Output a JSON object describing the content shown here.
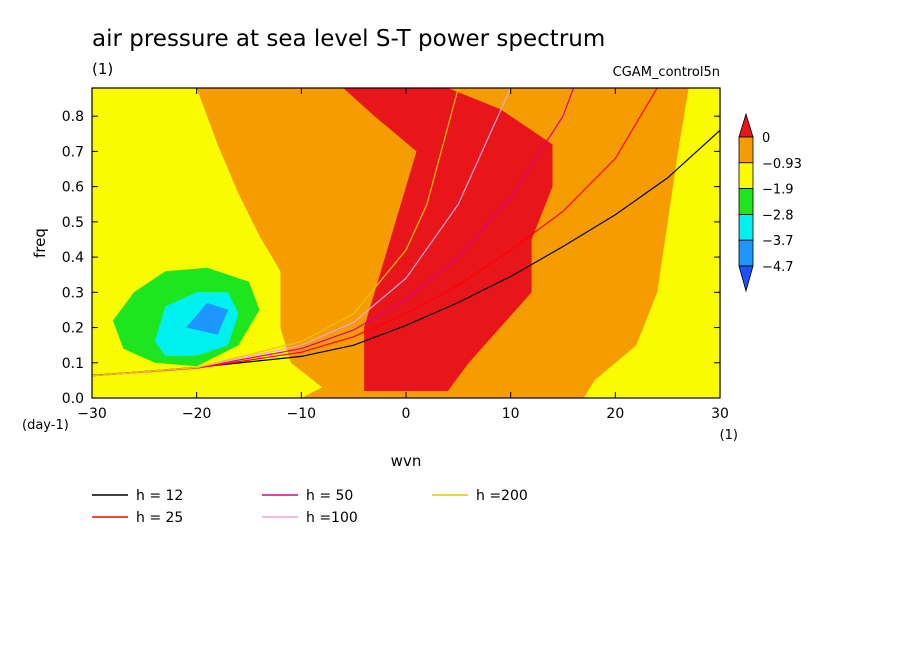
{
  "title": "air pressure at sea level S-T power spectrum",
  "units_label": "(1)",
  "run_label": "CGAM_control5n",
  "chart_data": {
    "type": "heatmap",
    "xlabel": "wvn",
    "ylabel": "freq",
    "x_units": "(1)",
    "y_units": "(day-1)",
    "xlim": [
      -30,
      30
    ],
    "ylim": [
      0,
      0.88
    ],
    "xticks": [
      -30,
      -20,
      -10,
      0,
      10,
      20,
      30
    ],
    "xtick_labels": [
      "−30",
      "−20",
      "−10",
      "0",
      "10",
      "20",
      "30"
    ],
    "yticks": [
      0.0,
      0.1,
      0.2,
      0.3,
      0.4,
      0.5,
      0.6,
      0.7,
      0.8
    ],
    "ytick_labels": [
      "0.0",
      "0.1",
      "0.2",
      "0.3",
      "0.4",
      "0.5",
      "0.6",
      "0.7",
      "0.8"
    ],
    "colorbar": {
      "labels": [
        "0",
        "−0.93",
        "−1.9",
        "−2.8",
        "−3.7",
        "−4.7"
      ],
      "colors": [
        "#e8161a",
        "#f59c00",
        "#fafa00",
        "#1ee61e",
        "#00f0f0",
        "#1e96ff",
        "#1e50ff"
      ]
    },
    "regions": [
      {
        "level": "yellow",
        "color": "#fafa00",
        "polygon": [
          [
            -30,
            0
          ],
          [
            -30,
            0.88
          ],
          [
            -20,
            0.88
          ],
          [
            -18,
            0.72
          ],
          [
            -16,
            0.58
          ],
          [
            -14,
            0.46
          ],
          [
            -12,
            0.36
          ],
          [
            -12,
            0.2
          ],
          [
            -11,
            0.1
          ],
          [
            -8,
            0.03
          ],
          [
            -10,
            0
          ]
        ]
      },
      {
        "level": "green",
        "color": "#1ee61e",
        "polygon": [
          [
            -28,
            0.22
          ],
          [
            -26,
            0.3
          ],
          [
            -23,
            0.36
          ],
          [
            -19,
            0.37
          ],
          [
            -15,
            0.33
          ],
          [
            -14,
            0.25
          ],
          [
            -16,
            0.15
          ],
          [
            -20,
            0.09
          ],
          [
            -24,
            0.1
          ],
          [
            -27,
            0.14
          ]
        ]
      },
      {
        "level": "cyan",
        "color": "#00f0f0",
        "polygon": [
          [
            -24,
            0.16
          ],
          [
            -23,
            0.26
          ],
          [
            -20,
            0.3
          ],
          [
            -17,
            0.3
          ],
          [
            -16,
            0.24
          ],
          [
            -17,
            0.15
          ],
          [
            -20,
            0.12
          ],
          [
            -23,
            0.12
          ]
        ]
      },
      {
        "level": "blue",
        "color": "#1e96ff",
        "polygon": [
          [
            -21,
            0.2
          ],
          [
            -19,
            0.27
          ],
          [
            -17,
            0.25
          ],
          [
            -18,
            0.18
          ]
        ]
      },
      {
        "level": "red",
        "color": "#e8161a",
        "polygon": [
          [
            -6,
            0.88
          ],
          [
            4,
            0.88
          ],
          [
            9,
            0.82
          ],
          [
            14,
            0.72
          ],
          [
            14,
            0.6
          ],
          [
            12,
            0.45
          ],
          [
            12,
            0.3
          ],
          [
            9,
            0.2
          ],
          [
            6,
            0.1
          ],
          [
            4,
            0.02
          ],
          [
            -4,
            0.02
          ],
          [
            -4,
            0.2
          ],
          [
            -1,
            0.5
          ],
          [
            1,
            0.7
          ],
          [
            -3,
            0.8
          ]
        ]
      },
      {
        "level": "yellow",
        "color": "#fafa00",
        "polygon": [
          [
            30,
            0
          ],
          [
            30,
            0.88
          ],
          [
            27,
            0.88
          ],
          [
            26,
            0.7
          ],
          [
            25,
            0.5
          ],
          [
            24,
            0.3
          ],
          [
            22,
            0.15
          ],
          [
            18,
            0.05
          ],
          [
            17,
            0
          ]
        ]
      }
    ],
    "series": [
      {
        "name": "h = 12",
        "color": "#000000",
        "x": [
          -30,
          -20,
          -10,
          -5,
          0,
          5,
          10,
          15,
          20,
          25,
          30
        ],
        "y": [
          0.064,
          0.087,
          0.118,
          0.15,
          0.206,
          0.271,
          0.345,
          0.43,
          0.52,
          0.625,
          0.76
        ]
      },
      {
        "name": "h = 25",
        "color": "#ff0000",
        "x": [
          -30,
          -20,
          -10,
          -5,
          0,
          5,
          10,
          15,
          20,
          24
        ],
        "y": [
          0.063,
          0.085,
          0.13,
          0.174,
          0.24,
          0.32,
          0.42,
          0.53,
          0.68,
          0.88
        ]
      },
      {
        "name": "h = 50",
        "color": "#dd0088",
        "x": [
          -30,
          -20,
          -10,
          -5,
          0,
          5,
          10,
          15,
          16
        ],
        "y": [
          0.063,
          0.086,
          0.14,
          0.193,
          0.28,
          0.4,
          0.57,
          0.8,
          0.88
        ]
      },
      {
        "name": "h =100",
        "color": "#e8a8d8",
        "x": [
          -30,
          -20,
          -10,
          -5,
          0,
          5,
          10
        ],
        "y": [
          0.063,
          0.086,
          0.15,
          0.215,
          0.34,
          0.55,
          0.88
        ]
      },
      {
        "name": "h =200",
        "color": "#f2c100",
        "x": [
          -30,
          -20,
          -10,
          -5,
          0,
          2,
          5
        ],
        "y": [
          0.063,
          0.087,
          0.16,
          0.24,
          0.42,
          0.55,
          0.88
        ]
      }
    ]
  }
}
